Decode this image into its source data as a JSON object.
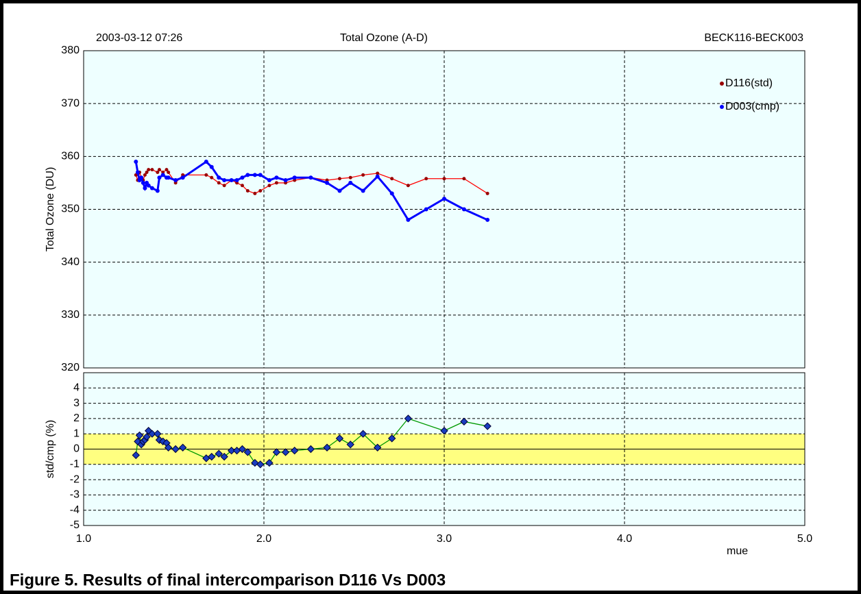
{
  "chart_data": [
    {
      "type": "line",
      "title": "Total Ozone (A-D)",
      "date": "2003-03-12  07:26",
      "station": "BECK116-BECK003",
      "ylabel": "Total Ozone (DU)",
      "xlim": [
        1,
        5
      ],
      "ylim": [
        320,
        380
      ],
      "yticks": [
        320,
        330,
        340,
        350,
        360,
        370,
        380
      ],
      "grid": true,
      "legend": "top-right",
      "x": [
        1.29,
        1.3,
        1.31,
        1.32,
        1.33,
        1.34,
        1.35,
        1.36,
        1.38,
        1.41,
        1.42,
        1.44,
        1.46,
        1.47,
        1.51,
        1.55,
        1.68,
        1.71,
        1.75,
        1.78,
        1.82,
        1.85,
        1.88,
        1.91,
        1.95,
        1.98,
        2.03,
        2.07,
        2.12,
        2.17,
        2.26,
        2.35,
        2.42,
        2.48,
        2.55,
        2.63,
        2.71,
        2.8,
        2.9,
        3.0,
        3.11,
        3.24
      ],
      "series": [
        {
          "name": "D116(std)",
          "color": "#ff0000",
          "marker": "#990000",
          "values": [
            356.5,
            355.5,
            357,
            356,
            355.5,
            356.5,
            357,
            357.5,
            357.5,
            357,
            357.5,
            357,
            357.5,
            357,
            355,
            356.5,
            356.5,
            356,
            355,
            354.5,
            355.5,
            355,
            354.5,
            353.5,
            353,
            353.5,
            354.5,
            355,
            355,
            355.5,
            356,
            355.5,
            355.8,
            356,
            356.5,
            356.8,
            355.8,
            354.5,
            355.8,
            355.8,
            355.8,
            353
          ]
        },
        {
          "name": "D003(cmp)",
          "color": "#0000ff",
          "marker": "#0000ff",
          "values": [
            359,
            357,
            355.5,
            356,
            355,
            354,
            355,
            354.5,
            354,
            353.5,
            356,
            356.5,
            356,
            356,
            355.5,
            356,
            359,
            358,
            356,
            355.5,
            355.5,
            355.5,
            356,
            356.5,
            356.5,
            356.5,
            355.5,
            356,
            355.5,
            356,
            356,
            355,
            353.5,
            355,
            353.5,
            356.2,
            353,
            348,
            350,
            352,
            350,
            348
          ]
        }
      ]
    },
    {
      "type": "line",
      "ylabel": "std/cmp (%)",
      "xlabel": "mue",
      "xlim": [
        1,
        5
      ],
      "ylim": [
        -5,
        5
      ],
      "yticks": [
        -5,
        -4,
        -3,
        -2,
        -1,
        0,
        1,
        2,
        3,
        4
      ],
      "xticks": [
        {
          "value": 1,
          "label": "1.0"
        },
        {
          "value": 2,
          "label": "2.0"
        },
        {
          "value": 3,
          "label": "3.0"
        },
        {
          "value": 4,
          "label": "4.0"
        },
        {
          "value": 5,
          "label": "5.0"
        }
      ],
      "grid": true,
      "band": [
        -1,
        1
      ],
      "band_color": "#ffff80",
      "x": [
        1.29,
        1.3,
        1.31,
        1.32,
        1.33,
        1.34,
        1.35,
        1.36,
        1.38,
        1.41,
        1.42,
        1.44,
        1.46,
        1.47,
        1.51,
        1.55,
        1.68,
        1.71,
        1.75,
        1.78,
        1.82,
        1.85,
        1.88,
        1.91,
        1.95,
        1.98,
        2.03,
        2.07,
        2.12,
        2.17,
        2.26,
        2.35,
        2.42,
        2.48,
        2.55,
        2.63,
        2.71,
        2.8,
        3.0,
        3.11,
        3.24
      ],
      "series": [
        {
          "name": "std/cmp",
          "color": "#009900",
          "marker": "#1a3cc0",
          "values": [
            -0.4,
            0.5,
            0.9,
            0.3,
            0.5,
            0.6,
            0.8,
            1.2,
            1.0,
            1.0,
            0.6,
            0.5,
            0.4,
            0.1,
            0.0,
            0.1,
            -0.6,
            -0.5,
            -0.3,
            -0.5,
            -0.1,
            -0.1,
            0.0,
            -0.2,
            -0.9,
            -1.0,
            -0.9,
            -0.2,
            -0.2,
            -0.1,
            0.0,
            0.1,
            0.7,
            0.3,
            1.0,
            0.1,
            0.7,
            2.0,
            1.2,
            1.8,
            1.5
          ]
        }
      ]
    }
  ],
  "caption": "Figure 5.  Results of final intercomparison D116 Vs D003"
}
